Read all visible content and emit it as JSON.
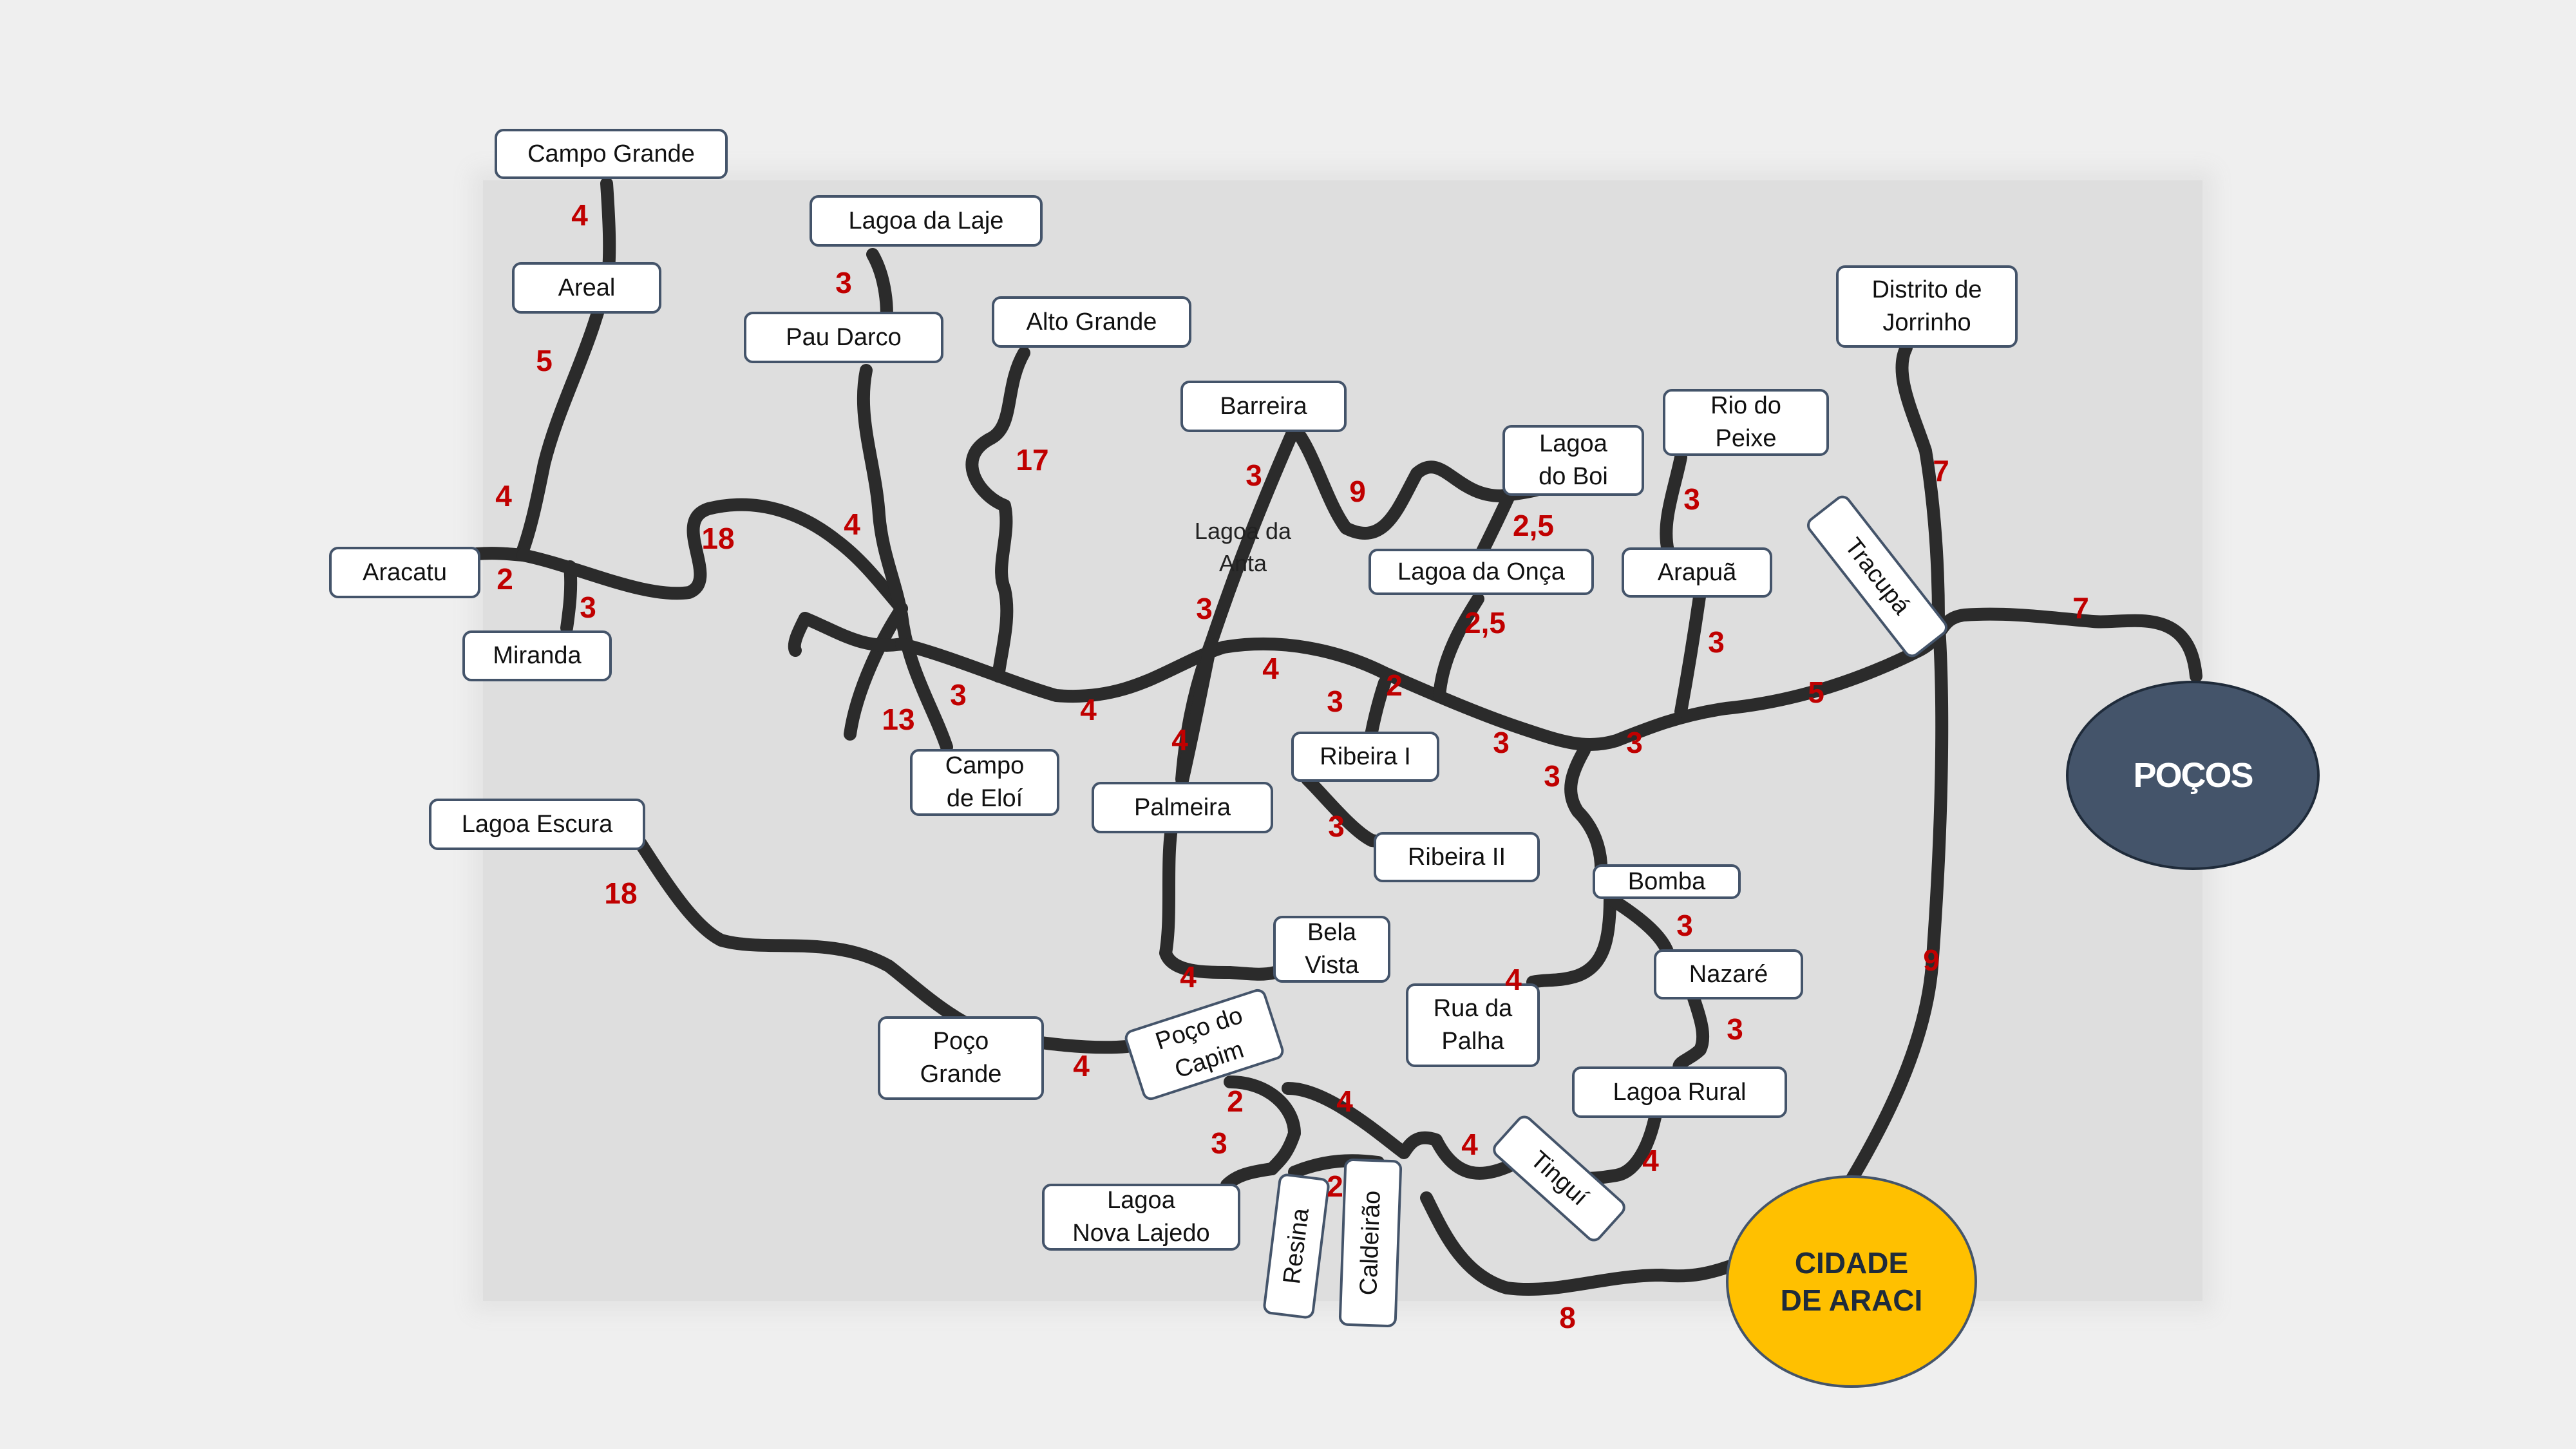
{
  "cities": {
    "pocos": "POÇOS",
    "araci": "CIDADE\nDE ARACI"
  },
  "places": {
    "campo_grande": "Campo Grande",
    "areal": "Areal",
    "aracatu": "Aracatu",
    "miranda": "Miranda",
    "lagoa_da_laje": "Lagoa da Laje",
    "pau_darco": "Pau Darco",
    "alto_grande": "Alto Grande",
    "campo_de_eloi": "Campo\nde Eloí",
    "barreira": "Barreira",
    "lagoa_do_boi": "Lagoa\ndo Boi",
    "rio_do_peixe": "Rio do\nPeixe",
    "lagoa_da_onca": "Lagoa da Onça",
    "arapua": "Arapuã",
    "tracupa": "Tracupá",
    "distrito_de_jorrinho": "Distrito de\nJorrinho",
    "ribeira_i": "Ribeira I",
    "ribeira_ii": "Ribeira II",
    "palmeira": "Palmeira",
    "bela_vista": "Bela\nVista",
    "bomba": "Bomba",
    "nazare": "Nazaré",
    "rua_da_palha": "Rua da\nPalha",
    "lagoa_rural": "Lagoa Rural",
    "lagoa_escura": "Lagoa Escura",
    "poco_grande": "Poço\nGrande",
    "poco_do_capim": "Poço do\nCapim",
    "lagoa_nova_lajedo": "Lagoa\nNova Lajedo",
    "resina": "Resina",
    "caldeirao": "Caldeirão",
    "tingui": "Tinguí",
    "lagoa_da_anta": "Lagoa da\nAnta"
  },
  "distances": {
    "campo_grande_areal": "4",
    "areal_junction": "5",
    "junction_north": "4",
    "aracatu": "2",
    "miranda": "3",
    "west_loop": "18",
    "lagoa_da_laje": "3",
    "pau_darco": "4",
    "alto_grande": "17",
    "west_spur": "13",
    "campo_de_eloi": "3",
    "central_west": "4",
    "central_mid": "4",
    "lagoa_da_anta": "3",
    "barreira_west": "3",
    "barreira_east": "9",
    "lagoa_do_boi": "2,5",
    "lagoa_da_onca": "2,5",
    "ribeira_fork": "2",
    "ribeira_i": "3",
    "ribeira_ii": "3",
    "central_east_a": "3",
    "central_east_b": "3",
    "rio_do_peixe": "3",
    "arapua": "3",
    "bomba_link": "3",
    "tracupa": "5",
    "jorrinho": "7",
    "pocos": "7",
    "araci_north": "9",
    "palmeira": "4",
    "bela_vista": "4",
    "nazare": "3",
    "lagoa_rural": "3",
    "rua_da_palha": "4",
    "tingui_a": "4",
    "tingui_b": "4",
    "lagoa_escura": "18",
    "poco_grande": "4",
    "capim_south": "2",
    "lagoa_nova_lajedo": "3",
    "capim_east": "4",
    "resina": "2",
    "araci_west": "8"
  }
}
